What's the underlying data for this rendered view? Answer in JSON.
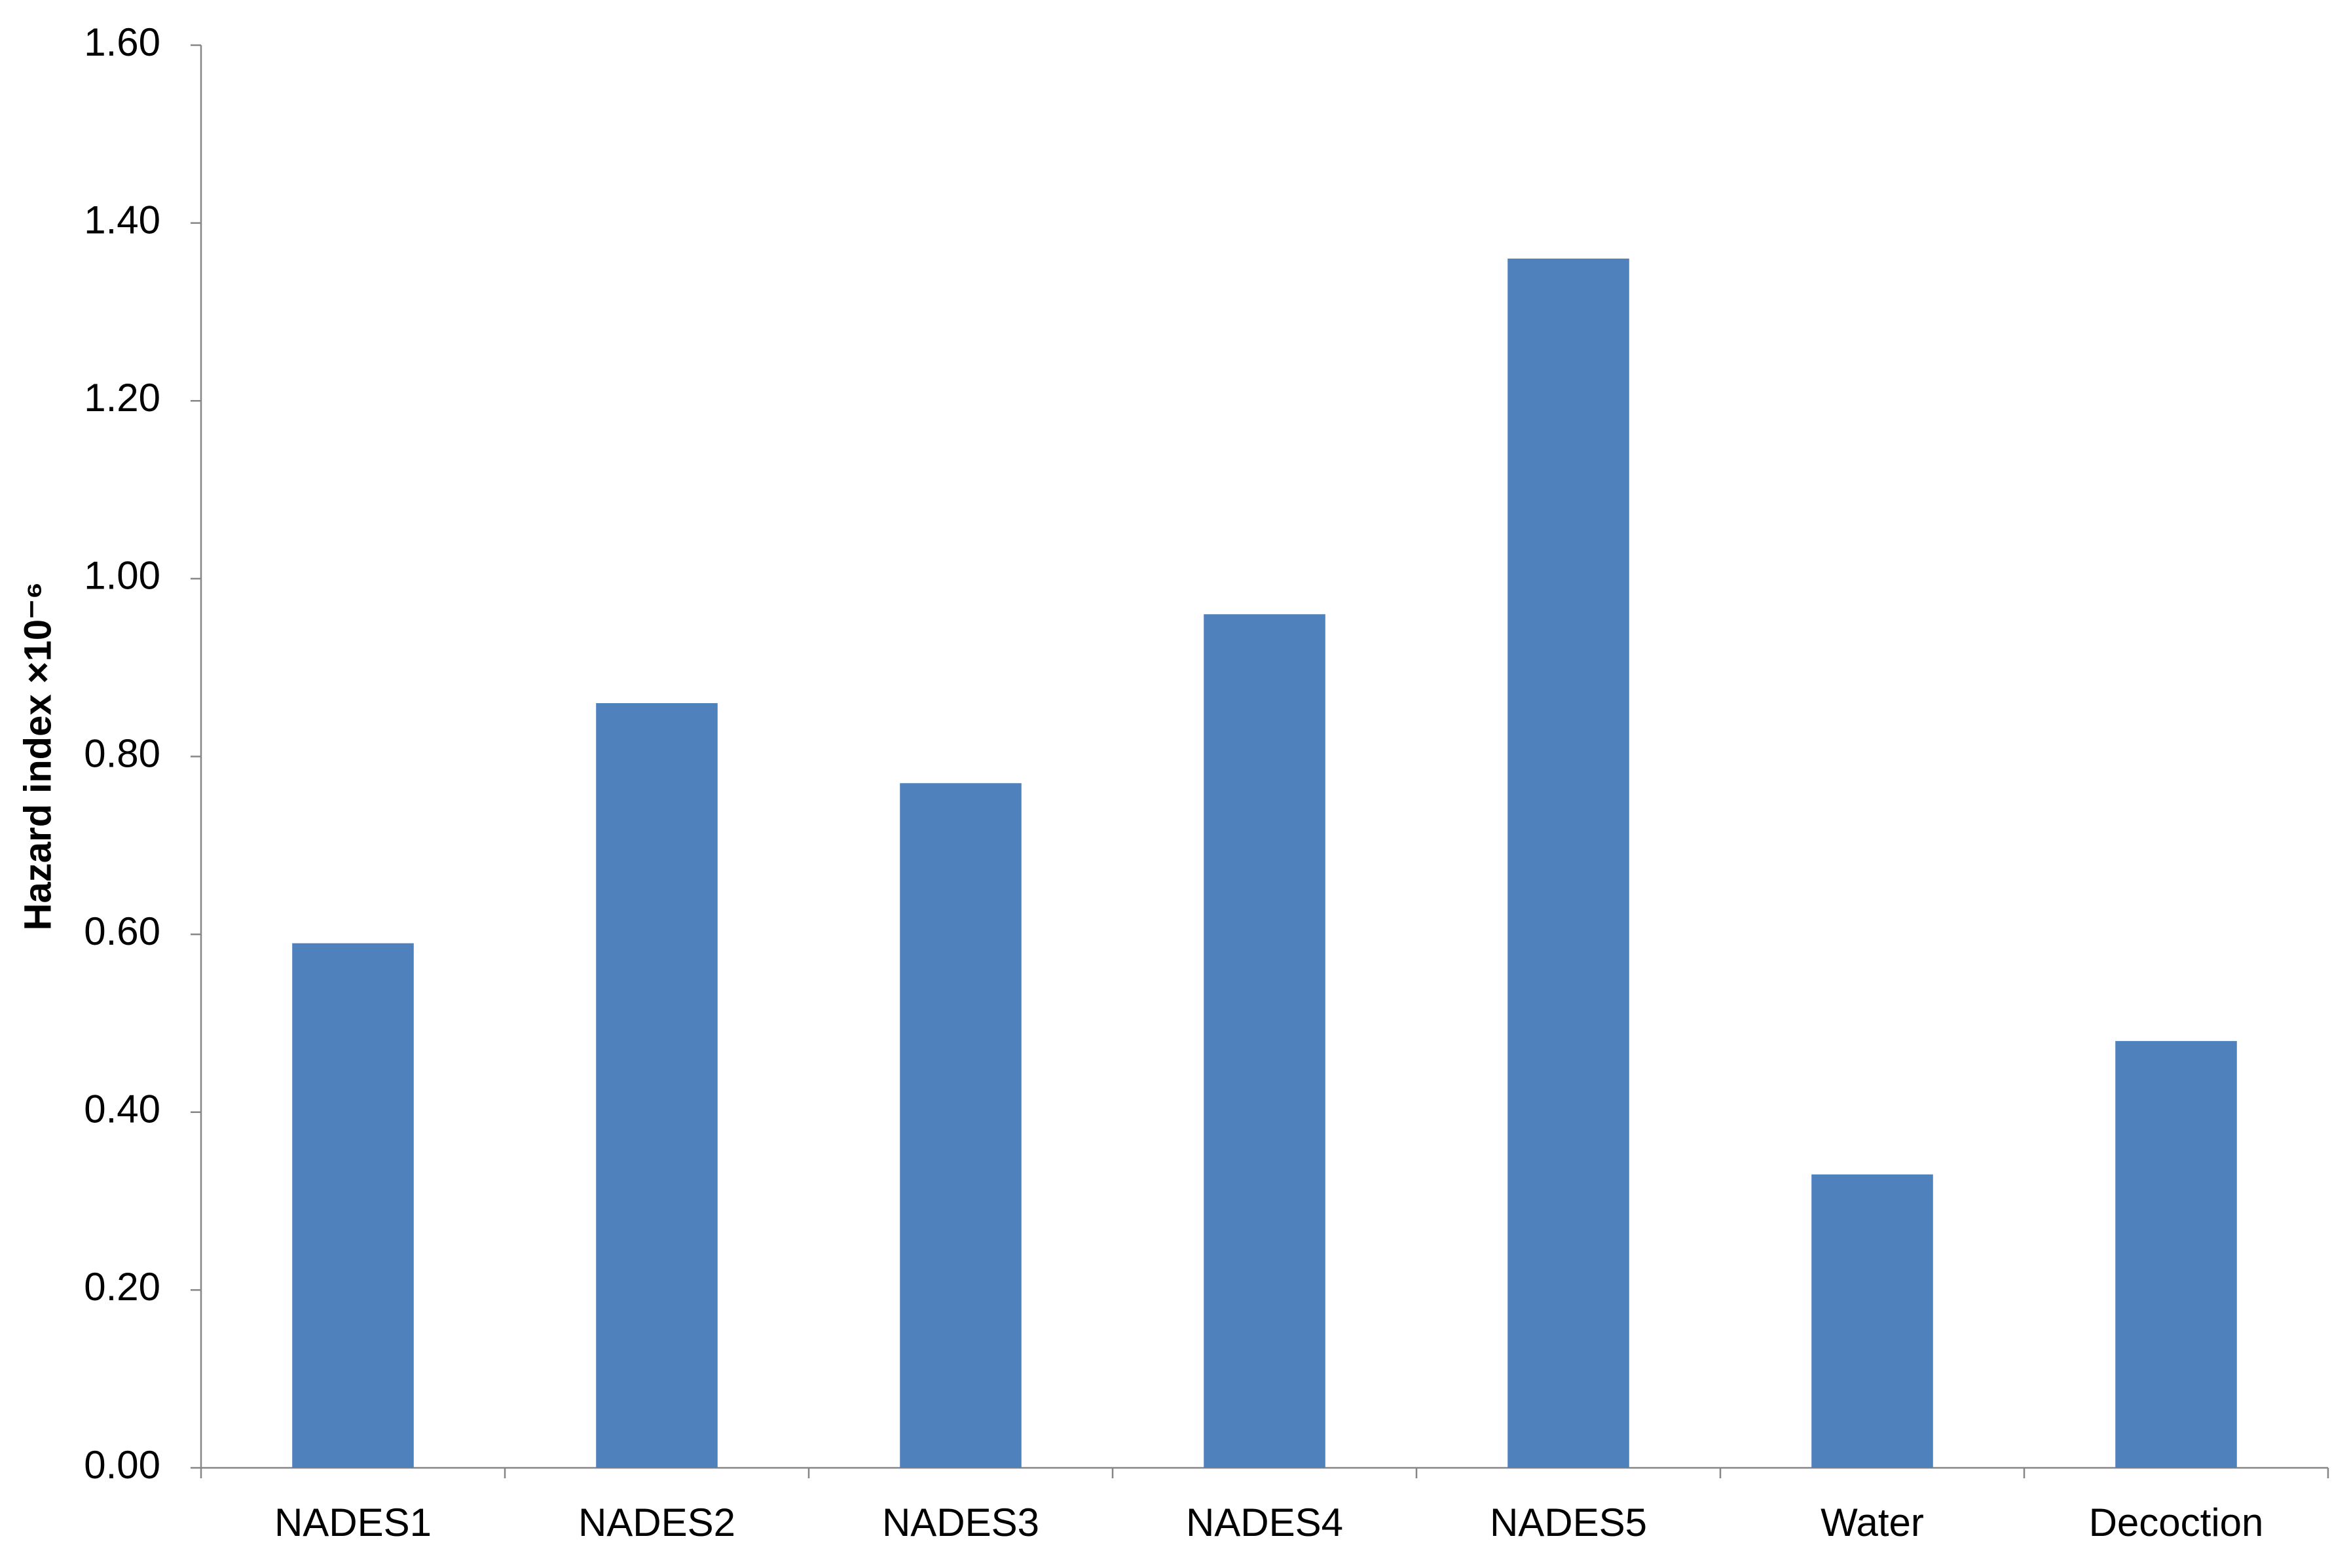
{
  "chart_data": {
    "type": "bar",
    "y_label": "Hazard index ×10⁻⁶",
    "categories": [
      "NADES1",
      "NADES2",
      "NADES3",
      "NADES4",
      "NADES5",
      "Water",
      "Decoction"
    ],
    "values": [
      0.59,
      0.86,
      0.77,
      0.96,
      1.36,
      0.33,
      0.48
    ],
    "color": "#4f81bd",
    "ylim": [
      0,
      1.6
    ],
    "yticks": [
      {
        "value": 0,
        "label": "0.00"
      },
      {
        "value": 0.2,
        "label": "0.20"
      },
      {
        "value": 0.4,
        "label": "0.40"
      },
      {
        "value": 0.6,
        "label": "0.60"
      },
      {
        "value": 0.8,
        "label": "0.80"
      },
      {
        "value": 1.0,
        "label": "1.00"
      },
      {
        "value": 1.2,
        "label": "1.20"
      },
      {
        "value": 1.4,
        "label": "1.40"
      },
      {
        "value": 1.6,
        "label": "1.60"
      }
    ],
    "grid": false
  }
}
